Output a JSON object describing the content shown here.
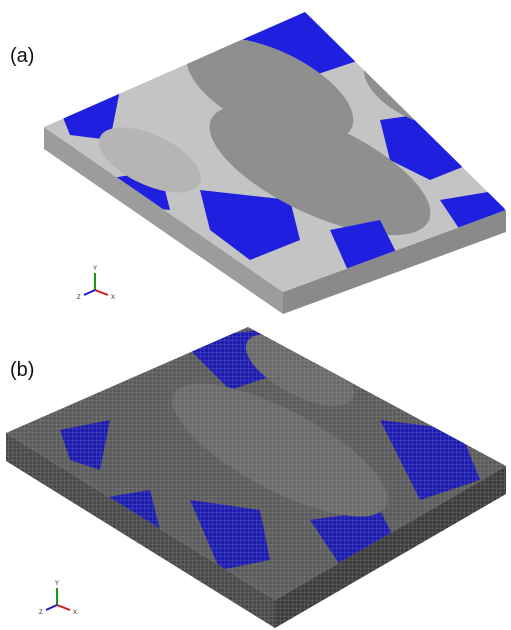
{
  "panels": [
    {
      "label": "(a)",
      "triad": {
        "y": "Y",
        "z": "Z",
        "x": "X"
      }
    },
    {
      "label": "(b)",
      "triad": {
        "y": "Y",
        "z": "Z",
        "x": "X"
      }
    }
  ]
}
